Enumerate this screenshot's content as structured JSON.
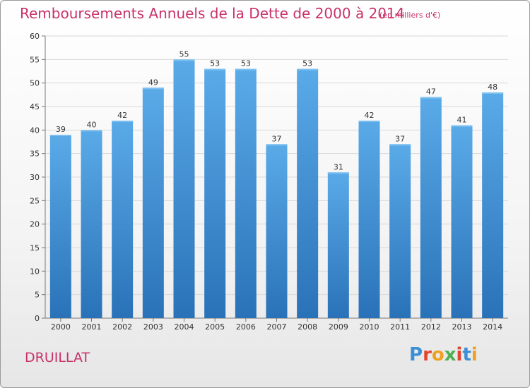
{
  "chart_data": {
    "type": "bar",
    "title": "Remboursements Annuels de la Dette de 2000 à 2014",
    "subtitle": "(en milliers d'€)",
    "categories": [
      "2000",
      "2001",
      "2002",
      "2003",
      "2004",
      "2005",
      "2006",
      "2007",
      "2008",
      "2009",
      "2010",
      "2011",
      "2012",
      "2013",
      "2014"
    ],
    "values": [
      39,
      40,
      42,
      49,
      55,
      53,
      53,
      37,
      53,
      31,
      42,
      37,
      47,
      41,
      48
    ],
    "ylim": [
      0,
      60
    ],
    "yticks": [
      0,
      5,
      10,
      15,
      20,
      25,
      30,
      35,
      40,
      45,
      50,
      55,
      60
    ],
    "xlabel": "",
    "ylabel": "",
    "grid": true,
    "bar_color": "#3d8ed6",
    "bar_color_light": "#5aaae8",
    "bar_color_dark": "#2a72b8"
  },
  "footer": {
    "commune": "DRUILLAT",
    "brand": "Proxiti"
  },
  "colors": {
    "title": "#c8326a",
    "grid": "#d9d9d9",
    "axis": "#777777"
  }
}
